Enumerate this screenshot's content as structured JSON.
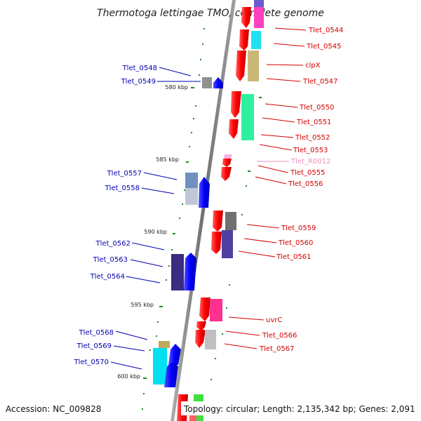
{
  "title": "Thermotoga lettingae TMO, complete genome",
  "accession": "Accession: NC_009828",
  "topology": "Topology: circular; Length: 2,135,342 bp; Genes: 2,091",
  "kbp_marks": [
    "580 kbp",
    "585 kbp",
    "590 kbp",
    "595 kbp",
    "600 kbp"
  ],
  "right_labels": [
    "Tlet_0544",
    "Tlet_0545",
    "clpX",
    "Tlet_0547",
    "Tlet_0550",
    "Tlet_0551",
    "Tlet_0552",
    "Tlet_0553",
    "Tlet_R0012",
    "Tlet_0555",
    "Tlet_0556",
    "Tlet_0559",
    "Tlet_0560",
    "Tlet_0561",
    "uvrC",
    "Tlet_0566",
    "Tlet_0567"
  ],
  "left_labels": [
    "Tlet_0548",
    "Tlet_0549",
    "Tlet_0557",
    "Tlet_0558",
    "Tlet_0562",
    "Tlet_0563",
    "Tlet_0564",
    "Tlet_0568",
    "Tlet_0569",
    "Tlet_0570"
  ],
  "colors": {
    "forward_strand": "#ee0000",
    "reverse_strand": "#0000ee",
    "rna": "#f090c0",
    "backbone": "#808080",
    "tick": "#228b22"
  }
}
